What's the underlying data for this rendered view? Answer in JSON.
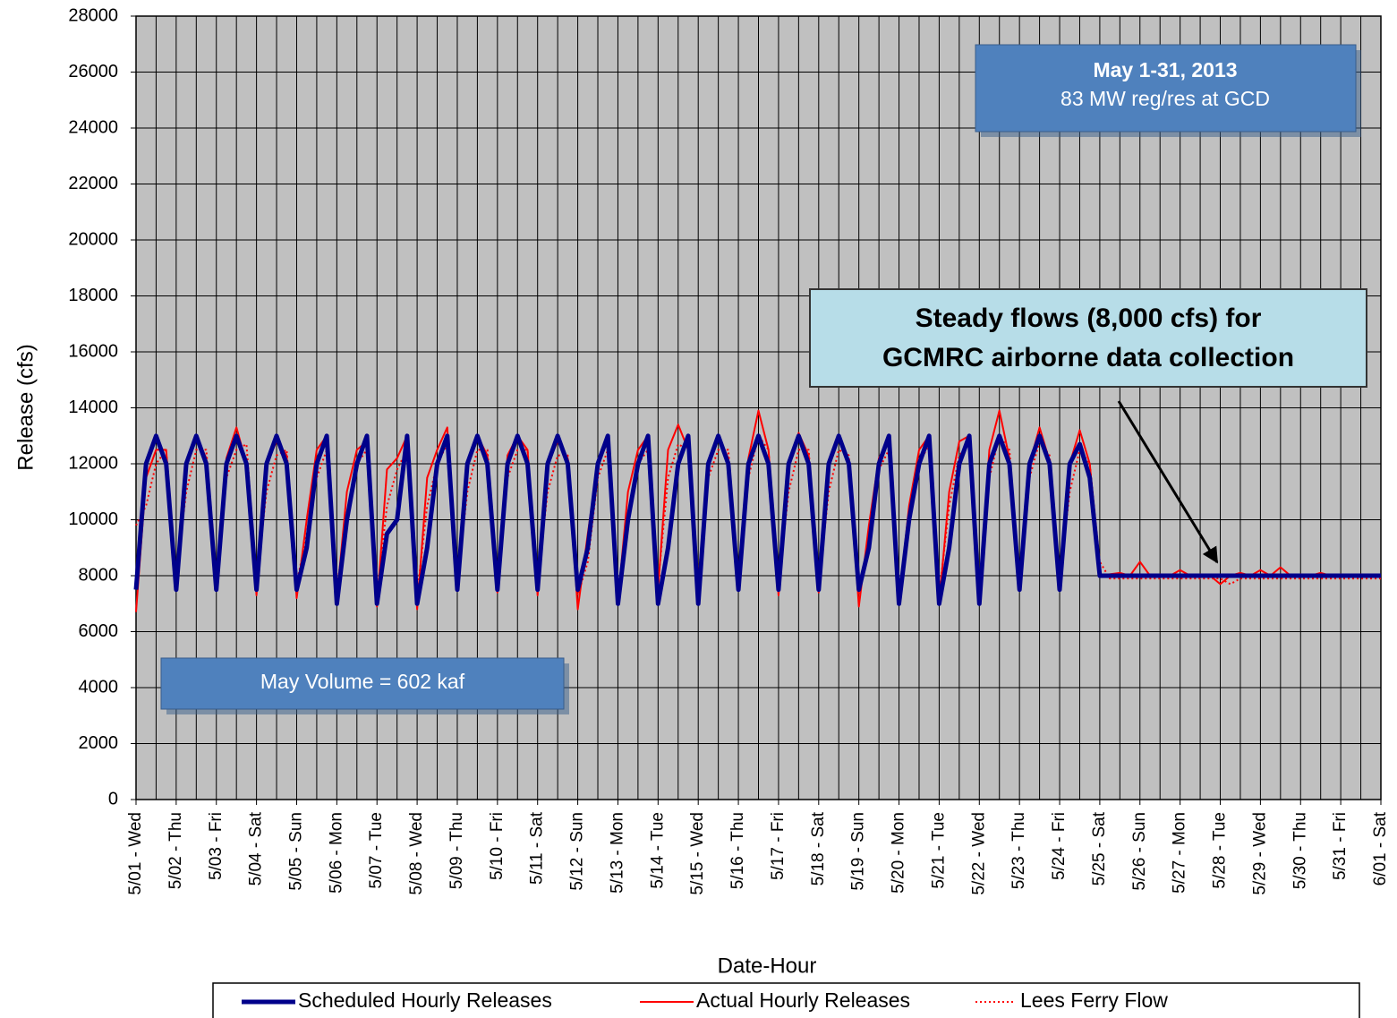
{
  "chart_data": {
    "type": "line",
    "xlabel": "Date-Hour",
    "ylabel": "Release (cfs)",
    "annotations": [
      "May 1-31, 2013",
      "83 MW reg/res at GCD",
      "Steady flows (8,000 cfs) for",
      "GCMRC airborne data collection",
      "May Volume = 602 kaf"
    ],
    "categories": [
      "5/01 - Wed",
      null,
      null,
      null,
      "5/02 - Thu",
      null,
      null,
      null,
      "5/03 - Fri",
      null,
      null,
      null,
      "5/04 - Sat",
      null,
      null,
      null,
      "5/05 - Sun",
      null,
      null,
      null,
      "5/06 - Mon",
      null,
      null,
      null,
      "5/07 - Tue",
      null,
      null,
      null,
      "5/08 - Wed",
      null,
      null,
      null,
      "5/09 - Thu",
      null,
      null,
      null,
      "5/10 - Fri",
      null,
      null,
      null,
      "5/11 - Sat",
      null,
      null,
      null,
      "5/12 - Sun",
      null,
      null,
      null,
      "5/13 - Mon",
      null,
      null,
      null,
      "5/14 - Tue",
      null,
      null,
      null,
      "5/15 - Wed",
      null,
      null,
      null,
      "5/16 - Thu",
      null,
      null,
      null,
      "5/17 - Fri",
      null,
      null,
      null,
      "5/18 - Sat",
      null,
      null,
      null,
      "5/19 - Sun",
      null,
      null,
      null,
      "5/20 - Mon",
      null,
      null,
      null,
      "5/21 - Tue",
      null,
      null,
      null,
      "5/22 - Wed",
      null,
      null,
      null,
      "5/23 - Thu",
      null,
      null,
      null,
      "5/24 - Fri",
      null,
      null,
      null,
      "5/25 - Sat",
      null,
      null,
      null,
      "5/26 - Sun",
      null,
      null,
      null,
      "5/27 - Mon",
      null,
      null,
      null,
      "5/28 - Tue",
      null,
      null,
      null,
      "5/29 - Wed",
      null,
      null,
      null,
      "5/30 - Thu",
      null,
      null,
      null,
      "5/31 - Fri",
      null,
      null,
      null,
      "6/01 - Sat"
    ],
    "series": [
      {
        "name": "Scheduled Hourly Releases",
        "color": "#00008b",
        "style": "solid",
        "values": [
          7500,
          12000,
          13000,
          12000,
          7500,
          12000,
          13000,
          12000,
          7500,
          12000,
          13000,
          12000,
          7500,
          12000,
          13000,
          12000,
          7500,
          9000,
          12000,
          13000,
          7000,
          10000,
          12000,
          13000,
          7000,
          9500,
          10000,
          13000,
          7000,
          9000,
          12000,
          13000,
          7500,
          12000,
          13000,
          12000,
          7500,
          12000,
          13000,
          12000,
          7500,
          12000,
          13000,
          12000,
          7500,
          9000,
          12000,
          13000,
          7000,
          10000,
          12000,
          13000,
          7000,
          9000,
          12000,
          13000,
          7000,
          12000,
          13000,
          12000,
          7500,
          12000,
          13000,
          12000,
          7500,
          12000,
          13000,
          12000,
          7500,
          12000,
          13000,
          12000,
          7500,
          9000,
          12000,
          13000,
          7000,
          10000,
          12000,
          13000,
          7000,
          9000,
          12000,
          13000,
          7000,
          12000,
          13000,
          12000,
          7500,
          12000,
          13000,
          12000,
          7500,
          12000,
          12700,
          11500,
          8000,
          8000,
          8000,
          8000,
          8000,
          8000,
          8000,
          8000,
          8000,
          8000,
          8000,
          8000,
          8000,
          8000,
          8000,
          8000,
          8000,
          8000,
          8000,
          8000,
          8000,
          8000,
          8000,
          8000,
          8000,
          8000,
          8000,
          8000,
          8000
        ]
      },
      {
        "name": "Actual Hourly Releases",
        "color": "#ff0000",
        "style": "solid",
        "values": [
          6700,
          11500,
          12500,
          12500,
          7500,
          12000,
          13000,
          12200,
          7600,
          12200,
          13300,
          12000,
          7300,
          12000,
          12800,
          12300,
          7200,
          10000,
          12500,
          13000,
          7200,
          11000,
          12500,
          12800,
          6900,
          11800,
          12200,
          13000,
          6800,
          11500,
          12500,
          13300,
          7500,
          12000,
          13000,
          12300,
          7400,
          12300,
          13000,
          12500,
          7300,
          12000,
          12800,
          12200,
          6800,
          9500,
          12000,
          12800,
          7100,
          11000,
          12500,
          13000,
          7500,
          12500,
          13400,
          12500,
          7600,
          12000,
          13000,
          12200,
          7500,
          12200,
          13900,
          12500,
          7300,
          12000,
          13100,
          12300,
          7400,
          12000,
          12900,
          12000,
          6900,
          9800,
          12200,
          12900,
          7100,
          10500,
          12500,
          13000,
          7000,
          11000,
          12800,
          13000,
          7200,
          12500,
          13900,
          12200,
          7500,
          12000,
          13300,
          12100,
          7700,
          12000,
          13200,
          12000,
          8000,
          8050,
          8100,
          8000,
          8500,
          8000,
          8050,
          8000,
          8200,
          8000,
          8050,
          8000,
          7700,
          8000,
          8100,
          8000,
          8200,
          8000,
          8300,
          8000,
          8050,
          8000,
          8100,
          8000,
          8050,
          8000,
          8050,
          8000,
          8000
        ]
      },
      {
        "name": "Lees Ferry Flow",
        "color": "#ff0000",
        "style": "dotted",
        "values": [
          9800,
          10500,
          12000,
          12500,
          8000,
          11000,
          12500,
          12500,
          8000,
          11500,
          12500,
          12700,
          7800,
          11000,
          12300,
          12500,
          7700,
          9500,
          11500,
          12500,
          7600,
          10000,
          12000,
          12500,
          7300,
          10500,
          11800,
          12500,
          7300,
          10500,
          12000,
          12700,
          7800,
          11000,
          12500,
          12500,
          7800,
          11500,
          12500,
          12500,
          7700,
          11000,
          12300,
          12300,
          7300,
          8500,
          11500,
          12500,
          7400,
          10000,
          12000,
          12500,
          7700,
          11500,
          12700,
          12500,
          7900,
          11500,
          12500,
          12500,
          7800,
          11500,
          13000,
          12500,
          7700,
          11000,
          12500,
          12500,
          7700,
          11000,
          12500,
          12300,
          7300,
          9000,
          11800,
          12500,
          7300,
          10000,
          12000,
          12700,
          7300,
          10500,
          12300,
          12700,
          7500,
          11500,
          13000,
          12500,
          7800,
          11500,
          12800,
          12300,
          7900,
          11000,
          12500,
          12000,
          8500,
          7900,
          7900,
          7900,
          7900,
          7900,
          7900,
          7900,
          7900,
          7900,
          7900,
          7900,
          7900,
          7700,
          7900,
          7900,
          7900,
          7900,
          7900,
          7900,
          7900,
          7900,
          7900,
          7900,
          7900,
          7900,
          7900,
          7900,
          7900
        ]
      }
    ],
    "ylim": [
      0,
      28000
    ],
    "yticks": [
      0,
      2000,
      4000,
      6000,
      8000,
      10000,
      12000,
      14000,
      16000,
      18000,
      20000,
      22000,
      24000,
      26000,
      28000
    ],
    "grid": true,
    "legend": "bottom",
    "background": "#c0c0c0"
  }
}
